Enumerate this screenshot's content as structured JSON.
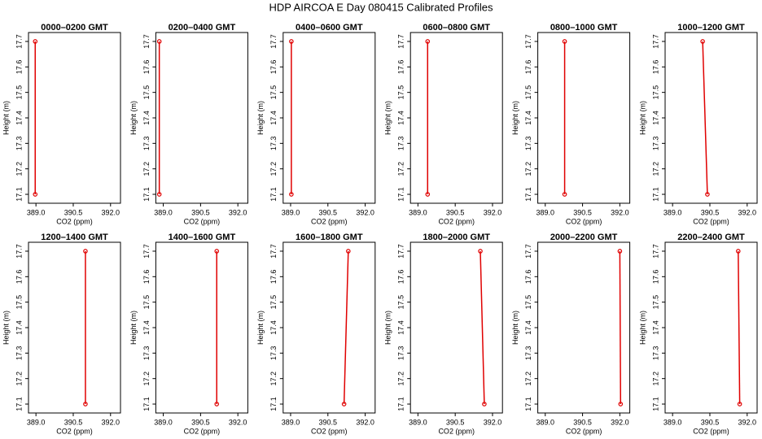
{
  "title": "HDP AIRCOA E  Day 080415  Calibrated Profiles",
  "chart_data": [
    {
      "type": "line",
      "title": "0000–0200 GMT",
      "xlabel": "CO2 (ppm)",
      "ylabel": "Height (m)",
      "x": [
        388.97,
        388.97
      ],
      "values": [
        17.1,
        17.7
      ],
      "color": "#e00000",
      "xlim": [
        388.7,
        392.4
      ],
      "xticks": [
        {
          "value": 389,
          "label": "389.0"
        },
        390.5,
        {
          "value": 392,
          "label": "392.0"
        }
      ],
      "ylim": [
        17.065,
        17.735
      ],
      "yticks": [
        17.1,
        17.2,
        17.3,
        17.4,
        17.5,
        17.6,
        17.7
      ]
    },
    {
      "type": "line",
      "title": "0200–0400 GMT",
      "xlabel": "CO2 (ppm)",
      "ylabel": "Height (m)",
      "x": [
        388.84,
        388.84
      ],
      "values": [
        17.1,
        17.7
      ],
      "color": "#e00000",
      "xlim": [
        388.7,
        392.4
      ],
      "xticks": [
        {
          "value": 389,
          "label": "389.0"
        },
        390.5,
        {
          "value": 392,
          "label": "392.0"
        }
      ],
      "ylim": [
        17.065,
        17.735
      ],
      "yticks": [
        17.1,
        17.2,
        17.3,
        17.4,
        17.5,
        17.6,
        17.7
      ]
    },
    {
      "type": "line",
      "title": "0400–0600 GMT",
      "xlabel": "CO2 (ppm)",
      "ylabel": "Height (m)",
      "x": [
        389.03,
        389.03
      ],
      "values": [
        17.1,
        17.7
      ],
      "color": "#e00000",
      "xlim": [
        388.7,
        392.4
      ],
      "xticks": [
        {
          "value": 389,
          "label": "389.0"
        },
        390.5,
        {
          "value": 392,
          "label": "392.0"
        }
      ],
      "ylim": [
        17.065,
        17.735
      ],
      "yticks": [
        17.1,
        17.2,
        17.3,
        17.4,
        17.5,
        17.6,
        17.7
      ]
    },
    {
      "type": "line",
      "title": "0600–0800 GMT",
      "xlabel": "CO2 (ppm)",
      "ylabel": "Height (m)",
      "x": [
        389.39,
        389.39
      ],
      "values": [
        17.1,
        17.7
      ],
      "color": "#e00000",
      "xlim": [
        388.7,
        392.4
      ],
      "xticks": [
        {
          "value": 389,
          "label": "389.0"
        },
        390.5,
        {
          "value": 392,
          "label": "392.0"
        }
      ],
      "ylim": [
        17.065,
        17.735
      ],
      "yticks": [
        17.1,
        17.2,
        17.3,
        17.4,
        17.5,
        17.6,
        17.7
      ]
    },
    {
      "type": "line",
      "title": "0800–1000 GMT",
      "xlabel": "CO2 (ppm)",
      "ylabel": "Height (m)",
      "x": [
        389.78,
        389.78
      ],
      "values": [
        17.1,
        17.7
      ],
      "color": "#e00000",
      "xlim": [
        388.7,
        392.4
      ],
      "xticks": [
        {
          "value": 389,
          "label": "389.0"
        },
        390.5,
        {
          "value": 392,
          "label": "392.0"
        }
      ],
      "ylim": [
        17.065,
        17.735
      ],
      "yticks": [
        17.1,
        17.2,
        17.3,
        17.4,
        17.5,
        17.6,
        17.7
      ]
    },
    {
      "type": "line",
      "title": "1000–1200 GMT",
      "xlabel": "CO2 (ppm)",
      "ylabel": "Height (m)",
      "x": [
        390.4,
        390.21
      ],
      "values": [
        17.1,
        17.7
      ],
      "color": "#e00000",
      "xlim": [
        388.7,
        392.4
      ],
      "xticks": [
        {
          "value": 389,
          "label": "389.0"
        },
        390.5,
        {
          "value": 392,
          "label": "392.0"
        }
      ],
      "ylim": [
        17.065,
        17.735
      ],
      "yticks": [
        17.1,
        17.2,
        17.3,
        17.4,
        17.5,
        17.6,
        17.7
      ]
    },
    {
      "type": "line",
      "title": "1200–1400 GMT",
      "xlabel": "CO2 (ppm)",
      "ylabel": "Height (m)",
      "x": [
        390.99,
        390.99
      ],
      "values": [
        17.1,
        17.7
      ],
      "color": "#e00000",
      "xlim": [
        388.7,
        392.4
      ],
      "xticks": [
        {
          "value": 389,
          "label": "389.0"
        },
        390.5,
        {
          "value": 392,
          "label": "392.0"
        }
      ],
      "ylim": [
        17.065,
        17.735
      ],
      "yticks": [
        17.1,
        17.2,
        17.3,
        17.4,
        17.5,
        17.6,
        17.7
      ]
    },
    {
      "type": "line",
      "title": "1400–1600 GMT",
      "xlabel": "CO2 (ppm)",
      "ylabel": "Height (m)",
      "x": [
        391.15,
        391.15
      ],
      "values": [
        17.1,
        17.7
      ],
      "color": "#e00000",
      "xlim": [
        388.7,
        392.4
      ],
      "xticks": [
        {
          "value": 389,
          "label": "389.0"
        },
        390.5,
        {
          "value": 392,
          "label": "392.0"
        }
      ],
      "ylim": [
        17.065,
        17.735
      ],
      "yticks": [
        17.1,
        17.2,
        17.3,
        17.4,
        17.5,
        17.6,
        17.7
      ]
    },
    {
      "type": "line",
      "title": "1600–1800 GMT",
      "xlabel": "CO2 (ppm)",
      "ylabel": "Height (m)",
      "x": [
        391.15,
        391.32
      ],
      "values": [
        17.1,
        17.7
      ],
      "color": "#e00000",
      "xlim": [
        388.7,
        392.4
      ],
      "xticks": [
        {
          "value": 389,
          "label": "389.0"
        },
        390.5,
        {
          "value": 392,
          "label": "392.0"
        }
      ],
      "ylim": [
        17.065,
        17.735
      ],
      "yticks": [
        17.1,
        17.2,
        17.3,
        17.4,
        17.5,
        17.6,
        17.7
      ]
    },
    {
      "type": "line",
      "title": "1800–2000 GMT",
      "xlabel": "CO2 (ppm)",
      "ylabel": "Height (m)",
      "x": [
        391.67,
        391.51
      ],
      "values": [
        17.1,
        17.7
      ],
      "color": "#e00000",
      "xlim": [
        388.7,
        392.4
      ],
      "xticks": [
        {
          "value": 389,
          "label": "389.0"
        },
        390.5,
        {
          "value": 392,
          "label": "392.0"
        }
      ],
      "ylim": [
        17.065,
        17.735
      ],
      "yticks": [
        17.1,
        17.2,
        17.3,
        17.4,
        17.5,
        17.6,
        17.7
      ]
    },
    {
      "type": "line",
      "title": "2000–2200 GMT",
      "xlabel": "CO2 (ppm)",
      "ylabel": "Height (m)",
      "x": [
        392.03,
        392.0
      ],
      "values": [
        17.1,
        17.7
      ],
      "color": "#e00000",
      "xlim": [
        388.7,
        392.4
      ],
      "xticks": [
        {
          "value": 389,
          "label": "389.0"
        },
        390.5,
        {
          "value": 392,
          "label": "392.0"
        }
      ],
      "ylim": [
        17.065,
        17.735
      ],
      "yticks": [
        17.1,
        17.2,
        17.3,
        17.4,
        17.5,
        17.6,
        17.7
      ]
    },
    {
      "type": "line",
      "title": "2200–2400 GMT",
      "xlabel": "CO2 (ppm)",
      "ylabel": "Height (m)",
      "x": [
        391.7,
        391.64
      ],
      "values": [
        17.1,
        17.7
      ],
      "color": "#e00000",
      "xlim": [
        388.7,
        392.4
      ],
      "xticks": [
        {
          "value": 389,
          "label": "389.0"
        },
        390.5,
        {
          "value": 392,
          "label": "392.0"
        }
      ],
      "ylim": [
        17.065,
        17.735
      ],
      "yticks": [
        17.1,
        17.2,
        17.3,
        17.4,
        17.5,
        17.6,
        17.7
      ]
    }
  ]
}
